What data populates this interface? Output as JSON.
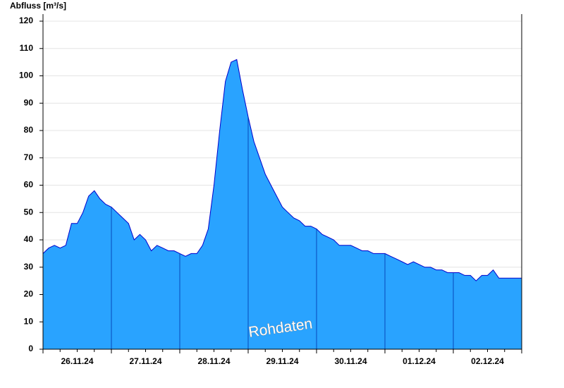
{
  "chart_data": {
    "type": "area",
    "y_label": "Abfluss [m³/s]",
    "annotation": "Rohdaten",
    "categories": [
      null,
      null,
      null,
      null,
      null,
      null,
      "26.11.24",
      null,
      null,
      null,
      null,
      null,
      null,
      null,
      null,
      null,
      null,
      null,
      "27.11.24",
      null,
      null,
      null,
      null,
      null,
      null,
      null,
      null,
      null,
      null,
      null,
      "28.11.24",
      null,
      null,
      null,
      null,
      null,
      null,
      null,
      null,
      null,
      null,
      null,
      "29.11.24",
      null,
      null,
      null,
      null,
      null,
      null,
      null,
      null,
      null,
      null,
      null,
      "30.11.24",
      null,
      null,
      null,
      null,
      null,
      null,
      null,
      null,
      null,
      null,
      null,
      "01.12.24",
      null,
      null,
      null,
      null,
      null,
      null,
      null,
      null,
      null,
      null,
      null,
      "02.12.24",
      null,
      null,
      null,
      null,
      null,
      null
    ],
    "values": [
      35,
      37,
      38,
      37,
      38,
      46,
      46,
      50,
      56,
      58,
      55,
      53,
      52,
      50,
      48,
      46,
      40,
      42,
      40,
      36,
      38,
      37,
      36,
      36,
      35,
      34,
      35,
      35,
      38,
      44,
      60,
      80,
      98,
      105,
      106,
      95,
      85,
      76,
      70,
      64,
      60,
      56,
      52,
      50,
      48,
      47,
      45,
      45,
      44,
      42,
      41,
      40,
      38,
      38,
      38,
      37,
      36,
      36,
      35,
      35,
      35,
      34,
      33,
      32,
      31,
      32,
      31,
      30,
      30,
      29,
      29,
      28,
      28,
      28,
      27,
      27,
      25,
      27,
      27,
      29,
      26,
      26,
      26,
      26,
      26
    ],
    "color": "#29a3ff",
    "line_color": "#0000cc",
    "ylim": [
      0,
      120
    ],
    "yticks": [
      0,
      10,
      20,
      30,
      40,
      50,
      60,
      70,
      80,
      90,
      100,
      110,
      120
    ],
    "grid": true
  }
}
